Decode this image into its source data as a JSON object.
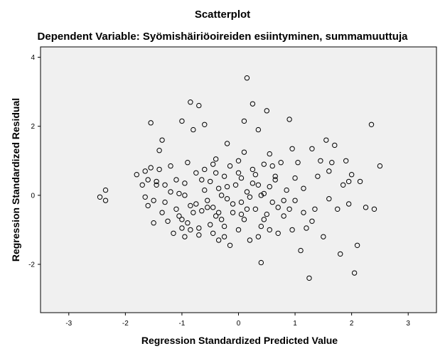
{
  "chart_data": {
    "type": "scatter",
    "title": "Scatterplot",
    "subtitle": "Dependent Variable: Syömishäiriöoireiden esiintyminen, summamuuttuja",
    "xlabel": "Regression Standardized Predicted Value",
    "ylabel": "Regression Standardized Residual",
    "xlim": [
      -3.5,
      3.5
    ],
    "ylim": [
      -3.4,
      4.3
    ],
    "xticks": [
      "-3",
      "-2",
      "-1",
      "0",
      "1",
      "2",
      "3"
    ],
    "yticks": [
      "-2",
      "0",
      "2",
      "4"
    ],
    "xtick_values": [
      -3,
      -2,
      -1,
      0,
      1,
      2,
      3
    ],
    "ytick_values": [
      -2,
      0,
      2,
      4
    ],
    "grid": false,
    "plot_background": "#f0f0f0",
    "marker_color": "#000000",
    "points": [
      [
        -2.45,
        -0.05
      ],
      [
        -2.35,
        0.15
      ],
      [
        -2.35,
        -0.15
      ],
      [
        -1.8,
        0.6
      ],
      [
        -1.7,
        0.3
      ],
      [
        -1.65,
        0.7
      ],
      [
        -1.6,
        0.45
      ],
      [
        -1.55,
        0.8
      ],
      [
        -1.6,
        -0.3
      ],
      [
        -1.55,
        2.1
      ],
      [
        -1.5,
        -0.15
      ],
      [
        -1.45,
        0.4
      ],
      [
        -1.4,
        1.3
      ],
      [
        -1.4,
        0.75
      ],
      [
        -1.35,
        1.6
      ],
      [
        -1.5,
        -0.8
      ],
      [
        -1.45,
        0.3
      ],
      [
        -1.35,
        -0.5
      ],
      [
        -1.3,
        -0.2
      ],
      [
        -1.25,
        -0.75
      ],
      [
        -1.2,
        0.1
      ],
      [
        -1.15,
        -1.1
      ],
      [
        -1.1,
        -0.4
      ],
      [
        -1.1,
        0.45
      ],
      [
        -1.05,
        -0.6
      ],
      [
        -1.05,
        0.05
      ],
      [
        -1.0,
        -0.95
      ],
      [
        -1.0,
        2.15
      ],
      [
        -0.95,
        0.35
      ],
      [
        -0.95,
        -1.2
      ],
      [
        -0.9,
        -0.8
      ],
      [
        -0.9,
        0.95
      ],
      [
        -0.85,
        2.7
      ],
      [
        -0.85,
        -0.3
      ],
      [
        -0.8,
        1.9
      ],
      [
        -0.75,
        -0.25
      ],
      [
        -0.75,
        0.65
      ],
      [
        -0.7,
        2.6
      ],
      [
        -0.7,
        -0.95
      ],
      [
        -0.65,
        -0.45
      ],
      [
        -0.6,
        2.05
      ],
      [
        -0.6,
        0.15
      ],
      [
        -0.55,
        -0.35
      ],
      [
        -0.5,
        0.4
      ],
      [
        -0.5,
        -0.85
      ],
      [
        -0.45,
        0.9
      ],
      [
        -0.45,
        -1.1
      ],
      [
        -0.4,
        1.05
      ],
      [
        -0.4,
        -0.6
      ],
      [
        -0.35,
        0.2
      ],
      [
        -0.35,
        -1.3
      ],
      [
        -0.3,
        -0.7
      ],
      [
        -0.25,
        0.55
      ],
      [
        -0.25,
        -1.2
      ],
      [
        -0.2,
        1.5
      ],
      [
        -0.2,
        -0.1
      ],
      [
        -0.15,
        0.85
      ],
      [
        -0.15,
        -1.45
      ],
      [
        -0.1,
        -0.5
      ],
      [
        -0.05,
        0.3
      ],
      [
        0.0,
        1.0
      ],
      [
        0.0,
        -1.0
      ],
      [
        0.05,
        -0.2
      ],
      [
        0.05,
        0.5
      ],
      [
        0.1,
        2.15
      ],
      [
        0.1,
        -0.7
      ],
      [
        0.15,
        3.4
      ],
      [
        0.15,
        0.1
      ],
      [
        0.2,
        -1.3
      ],
      [
        0.25,
        0.75
      ],
      [
        0.25,
        2.65
      ],
      [
        0.3,
        -0.4
      ],
      [
        0.35,
        1.9
      ],
      [
        0.35,
        0.3
      ],
      [
        0.4,
        -1.95
      ],
      [
        0.4,
        -0.9
      ],
      [
        0.45,
        0.9
      ],
      [
        0.45,
        0.05
      ],
      [
        0.5,
        2.45
      ],
      [
        0.5,
        -0.55
      ],
      [
        0.55,
        1.2
      ],
      [
        0.6,
        -0.2
      ],
      [
        0.65,
        0.45
      ],
      [
        0.7,
        -1.1
      ],
      [
        0.75,
        0.95
      ],
      [
        0.8,
        -0.6
      ],
      [
        0.85,
        0.15
      ],
      [
        0.9,
        2.2
      ],
      [
        0.9,
        -0.4
      ],
      [
        0.95,
        1.35
      ],
      [
        1.0,
        -0.15
      ],
      [
        1.05,
        0.95
      ],
      [
        1.1,
        -1.6
      ],
      [
        1.15,
        0.2
      ],
      [
        1.2,
        -0.95
      ],
      [
        1.25,
        -2.4
      ],
      [
        1.3,
        1.35
      ],
      [
        1.35,
        -0.4
      ],
      [
        1.4,
        0.55
      ],
      [
        1.45,
        1.0
      ],
      [
        1.5,
        -1.2
      ],
      [
        1.55,
        1.6
      ],
      [
        1.6,
        -0.1
      ],
      [
        1.65,
        0.95
      ],
      [
        1.7,
        1.45
      ],
      [
        1.75,
        -0.4
      ],
      [
        1.8,
        -1.7
      ],
      [
        1.85,
        0.3
      ],
      [
        1.9,
        1.0
      ],
      [
        1.95,
        -0.25
      ],
      [
        2.0,
        0.6
      ],
      [
        2.05,
        -2.25
      ],
      [
        2.1,
        -1.45
      ],
      [
        2.15,
        0.4
      ],
      [
        2.25,
        -0.35
      ],
      [
        2.35,
        2.05
      ],
      [
        2.4,
        -0.4
      ],
      [
        2.5,
        0.85
      ],
      [
        -0.55,
        -0.15
      ],
      [
        -0.45,
        -0.35
      ],
      [
        -0.3,
        0.0
      ],
      [
        -0.1,
        -0.25
      ],
      [
        0.0,
        0.65
      ],
      [
        0.15,
        -0.4
      ],
      [
        0.3,
        0.6
      ],
      [
        0.55,
        0.25
      ],
      [
        0.7,
        -0.35
      ],
      [
        -0.8,
        -0.5
      ],
      [
        -0.65,
        0.45
      ],
      [
        -0.25,
        -0.9
      ],
      [
        0.2,
        -0.05
      ],
      [
        0.45,
        -0.7
      ],
      [
        0.6,
        0.85
      ],
      [
        -1.2,
        0.85
      ],
      [
        -0.85,
        -1.0
      ],
      [
        -0.4,
        0.65
      ],
      [
        0.1,
        1.25
      ],
      [
        0.35,
        -1.2
      ],
      [
        0.8,
        -0.15
      ],
      [
        1.0,
        0.5
      ],
      [
        1.3,
        -0.75
      ],
      [
        -1.65,
        -0.05
      ],
      [
        -1.3,
        0.3
      ],
      [
        -0.95,
        0.0
      ],
      [
        -0.6,
        0.75
      ],
      [
        -0.35,
        -0.5
      ],
      [
        0.25,
        0.35
      ],
      [
        0.55,
        -1.0
      ],
      [
        0.95,
        -1.0
      ],
      [
        1.15,
        -0.5
      ],
      [
        1.6,
        0.7
      ],
      [
        1.95,
        0.4
      ],
      [
        -1.0,
        -0.7
      ],
      [
        -0.7,
        -1.15
      ],
      [
        -0.2,
        0.25
      ],
      [
        0.05,
        -0.55
      ],
      [
        0.4,
        0.0
      ],
      [
        0.65,
        0.55
      ]
    ]
  }
}
